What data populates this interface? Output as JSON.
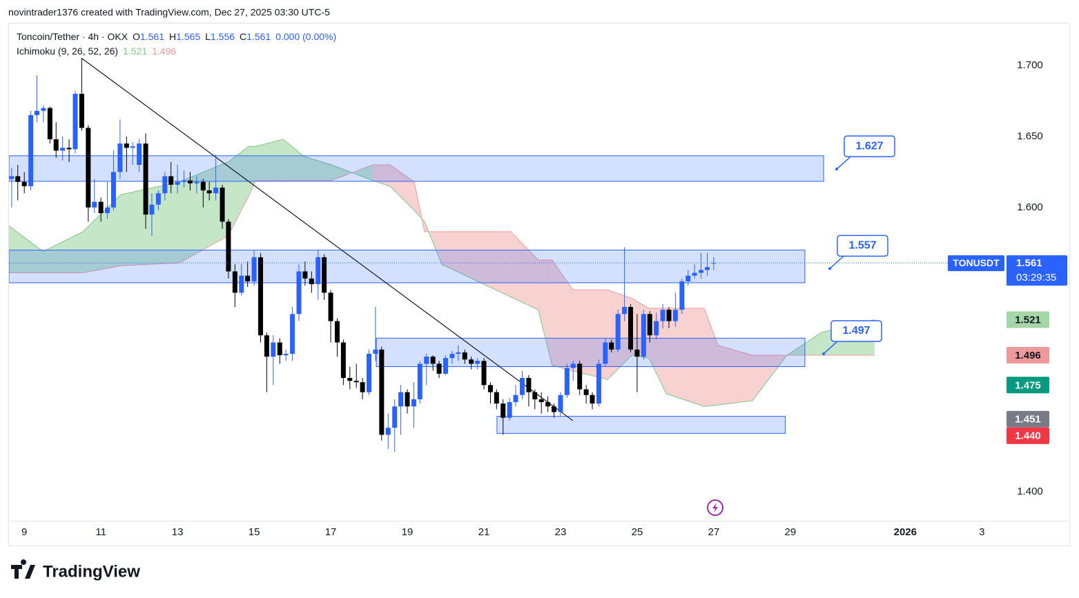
{
  "header": {
    "attribution": "novintrader1376 created with TradingView.com, Dec 27, 2025 03:30 UTC-5"
  },
  "footer": {
    "logo": "TradingView"
  },
  "chart_data": {
    "type": "candlestick",
    "legend": {
      "symbol": "Toncoin/Tether · 4h · OKX",
      "ohlc": [
        {
          "key": "O",
          "text": "1.561"
        },
        {
          "key": "H",
          "text": "1.565"
        },
        {
          "key": "L",
          "text": "1.556"
        },
        {
          "key": "C",
          "text": "1.561"
        }
      ],
      "change": "0.000 (0.00%)",
      "indicator": "Ichimoku (9, 26, 52, 26)",
      "indicator_values": [
        "1.521",
        "1.496"
      ]
    },
    "up_color": "#2962ff",
    "down_color": "#000000",
    "xlim": [
      8.6,
      34.59
    ],
    "ylim": [
      1.38,
      1.73
    ],
    "xticks": [
      9,
      11,
      13,
      15,
      17,
      19,
      21,
      23,
      25,
      27,
      29,
      {
        "value": 32,
        "label": "2026"
      },
      {
        "value": 34,
        "label": "3"
      }
    ],
    "yticks": [
      {
        "value": 1.4,
        "label": "1.400"
      },
      {
        "value": 1.6,
        "label": "1.600"
      },
      {
        "value": 1.65,
        "label": "1.650"
      },
      {
        "value": 1.7,
        "label": "1.700"
      }
    ],
    "candles": [
      [
        8.67,
        1.62,
        1.628,
        1.6,
        1.622
      ],
      [
        8.83,
        1.622,
        1.63,
        1.605,
        1.618
      ],
      [
        9.0,
        1.618,
        1.625,
        1.61,
        1.615
      ],
      [
        9.17,
        1.615,
        1.668,
        1.612,
        1.665
      ],
      [
        9.33,
        1.665,
        1.693,
        1.66,
        1.668
      ],
      [
        9.5,
        1.668,
        1.672,
        1.66,
        1.67
      ],
      [
        9.67,
        1.67,
        1.671,
        1.645,
        1.648
      ],
      [
        9.83,
        1.648,
        1.66,
        1.635,
        1.64
      ],
      [
        10.0,
        1.64,
        1.65,
        1.633,
        1.642
      ],
      [
        10.17,
        1.642,
        1.648,
        1.632,
        1.641
      ],
      [
        10.33,
        1.641,
        1.682,
        1.638,
        1.68
      ],
      [
        10.5,
        1.68,
        1.705,
        1.654,
        1.656
      ],
      [
        10.67,
        1.656,
        1.658,
        1.59,
        1.6
      ],
      [
        10.83,
        1.6,
        1.62,
        1.596,
        1.604
      ],
      [
        11.0,
        1.604,
        1.607,
        1.59,
        1.596
      ],
      [
        11.17,
        1.596,
        1.618,
        1.592,
        1.6
      ],
      [
        11.33,
        1.6,
        1.64,
        1.598,
        1.625
      ],
      [
        11.5,
        1.625,
        1.662,
        1.62,
        1.645
      ],
      [
        11.67,
        1.645,
        1.65,
        1.625,
        1.642
      ],
      [
        11.83,
        1.642,
        1.646,
        1.63,
        1.643
      ],
      [
        12.0,
        1.63,
        1.648,
        1.625,
        1.645
      ],
      [
        12.17,
        1.645,
        1.652,
        1.585,
        1.595
      ],
      [
        12.33,
        1.595,
        1.61,
        1.58,
        1.602
      ],
      [
        12.5,
        1.602,
        1.612,
        1.598,
        1.61
      ],
      [
        12.67,
        1.61,
        1.625,
        1.605,
        1.622
      ],
      [
        12.83,
        1.622,
        1.632,
        1.61,
        1.616
      ],
      [
        13.0,
        1.616,
        1.63,
        1.61,
        1.618
      ],
      [
        13.17,
        1.618,
        1.626,
        1.614,
        1.619
      ],
      [
        13.33,
        1.619,
        1.625,
        1.612,
        1.617
      ],
      [
        13.5,
        1.617,
        1.622,
        1.61,
        1.618
      ],
      [
        13.67,
        1.618,
        1.62,
        1.6,
        1.612
      ],
      [
        13.83,
        1.612,
        1.618,
        1.605,
        1.61
      ],
      [
        14.0,
        1.61,
        1.637,
        1.605,
        1.614
      ],
      [
        14.17,
        1.614,
        1.616,
        1.585,
        1.59
      ],
      [
        14.33,
        1.59,
        1.592,
        1.55,
        1.555
      ],
      [
        14.5,
        1.555,
        1.56,
        1.53,
        1.54
      ],
      [
        14.67,
        1.54,
        1.56,
        1.538,
        1.552
      ],
      [
        14.83,
        1.552,
        1.562,
        1.544,
        1.548
      ],
      [
        15.0,
        1.548,
        1.57,
        1.545,
        1.565
      ],
      [
        15.17,
        1.565,
        1.568,
        1.505,
        1.51
      ],
      [
        15.33,
        1.51,
        1.512,
        1.47,
        1.495
      ],
      [
        15.5,
        1.495,
        1.51,
        1.475,
        1.505
      ],
      [
        15.67,
        1.505,
        1.508,
        1.49,
        1.496
      ],
      [
        15.83,
        1.496,
        1.5,
        1.492,
        1.497
      ],
      [
        16.0,
        1.497,
        1.53,
        1.492,
        1.525
      ],
      [
        16.17,
        1.525,
        1.56,
        1.52,
        1.555
      ],
      [
        16.33,
        1.555,
        1.562,
        1.545,
        1.55
      ],
      [
        16.5,
        1.55,
        1.555,
        1.54,
        1.546
      ],
      [
        16.67,
        1.546,
        1.57,
        1.535,
        1.565
      ],
      [
        16.83,
        1.565,
        1.567,
        1.535,
        1.54
      ],
      [
        17.0,
        1.54,
        1.542,
        1.505,
        1.52
      ],
      [
        17.17,
        1.52,
        1.522,
        1.495,
        1.505
      ],
      [
        17.33,
        1.505,
        1.507,
        1.475,
        1.48
      ],
      [
        17.5,
        1.48,
        1.488,
        1.472,
        1.478
      ],
      [
        17.67,
        1.478,
        1.49,
        1.473,
        1.477
      ],
      [
        17.83,
        1.477,
        1.48,
        1.465,
        1.47
      ],
      [
        18.0,
        1.47,
        1.5,
        1.468,
        1.497
      ],
      [
        18.17,
        1.497,
        1.53,
        1.492,
        1.5
      ],
      [
        18.33,
        1.5,
        1.502,
        1.436,
        1.44
      ],
      [
        18.5,
        1.44,
        1.455,
        1.43,
        1.445
      ],
      [
        18.67,
        1.445,
        1.465,
        1.428,
        1.46
      ],
      [
        18.83,
        1.46,
        1.475,
        1.44,
        1.47
      ],
      [
        19.0,
        1.47,
        1.472,
        1.455,
        1.46
      ],
      [
        19.17,
        1.46,
        1.477,
        1.445,
        1.465
      ],
      [
        19.33,
        1.465,
        1.492,
        1.462,
        1.49
      ],
      [
        19.5,
        1.49,
        1.497,
        1.475,
        1.495
      ],
      [
        19.67,
        1.495,
        1.496,
        1.485,
        1.49
      ],
      [
        19.83,
        1.49,
        1.492,
        1.48,
        1.483
      ],
      [
        20.0,
        1.483,
        1.496,
        1.482,
        1.494
      ],
      [
        20.17,
        1.494,
        1.499,
        1.49,
        1.497
      ],
      [
        20.33,
        1.497,
        1.503,
        1.492,
        1.498
      ],
      [
        20.5,
        1.498,
        1.5,
        1.49,
        1.493
      ],
      [
        20.67,
        1.493,
        1.495,
        1.486,
        1.49
      ],
      [
        20.83,
        1.49,
        1.494,
        1.486,
        1.492
      ],
      [
        21.0,
        1.492,
        1.494,
        1.472,
        1.475
      ],
      [
        21.17,
        1.475,
        1.477,
        1.462,
        1.47
      ],
      [
        21.33,
        1.47,
        1.472,
        1.458,
        1.462
      ],
      [
        21.5,
        1.462,
        1.465,
        1.44,
        1.452
      ],
      [
        21.67,
        1.452,
        1.466,
        1.45,
        1.463
      ],
      [
        21.83,
        1.463,
        1.475,
        1.46,
        1.468
      ],
      [
        22.0,
        1.468,
        1.485,
        1.465,
        1.48
      ],
      [
        22.17,
        1.48,
        1.482,
        1.46,
        1.47
      ],
      [
        22.33,
        1.47,
        1.472,
        1.458,
        1.465
      ],
      [
        22.5,
        1.465,
        1.47,
        1.455,
        1.463
      ],
      [
        22.67,
        1.463,
        1.467,
        1.456,
        1.46
      ],
      [
        22.83,
        1.46,
        1.462,
        1.452,
        1.456
      ],
      [
        23.0,
        1.456,
        1.47,
        1.453,
        1.468
      ],
      [
        23.17,
        1.468,
        1.49,
        1.466,
        1.487
      ],
      [
        23.33,
        1.487,
        1.492,
        1.478,
        1.49
      ],
      [
        23.5,
        1.49,
        1.492,
        1.468,
        1.472
      ],
      [
        23.67,
        1.472,
        1.475,
        1.462,
        1.468
      ],
      [
        23.83,
        1.468,
        1.47,
        1.458,
        1.462
      ],
      [
        24.0,
        1.462,
        1.493,
        1.46,
        1.49
      ],
      [
        24.17,
        1.49,
        1.508,
        1.488,
        1.505
      ],
      [
        24.33,
        1.505,
        1.507,
        1.498,
        1.5
      ],
      [
        24.5,
        1.5,
        1.528,
        1.498,
        1.525
      ],
      [
        24.67,
        1.525,
        1.572,
        1.52,
        1.53
      ],
      [
        24.83,
        1.53,
        1.532,
        1.498,
        1.5
      ],
      [
        25.0,
        1.5,
        1.525,
        1.47,
        1.495
      ],
      [
        25.17,
        1.495,
        1.528,
        1.493,
        1.525
      ],
      [
        25.33,
        1.525,
        1.527,
        1.505,
        1.51
      ],
      [
        25.5,
        1.51,
        1.526,
        1.507,
        1.52
      ],
      [
        25.67,
        1.52,
        1.532,
        1.515,
        1.528
      ],
      [
        25.83,
        1.528,
        1.53,
        1.515,
        1.52
      ],
      [
        26.0,
        1.52,
        1.54,
        1.516,
        1.528
      ],
      [
        26.17,
        1.528,
        1.55,
        1.525,
        1.548
      ],
      [
        26.33,
        1.548,
        1.556,
        1.545,
        1.552
      ],
      [
        26.5,
        1.552,
        1.56,
        1.55,
        1.554
      ],
      [
        26.67,
        1.554,
        1.568,
        1.55,
        1.556
      ],
      [
        26.83,
        1.556,
        1.568,
        1.552,
        1.558
      ],
      [
        27.0,
        1.561,
        1.565,
        1.556,
        1.561
      ]
    ],
    "ichimoku": {
      "x": [
        8.6,
        9.49,
        10.53,
        11.52,
        13.05,
        14.32,
        14.86,
        15.04,
        15.76,
        16.3,
        17.02,
        18.1,
        18.55,
        19.18,
        19.45,
        19.9,
        21.7,
        22.42,
        22.78,
        23.32,
        24.23,
        24.86,
        25.31,
        25.76,
        26.75,
        27.11,
        28.01,
        28.91,
        29.81,
        31.2
      ],
      "span_a": [
        1.587,
        1.569,
        1.583,
        1.609,
        1.618,
        1.632,
        1.643,
        1.643,
        1.648,
        1.636,
        1.63,
        1.619,
        1.615,
        1.598,
        1.59,
        1.56,
        1.537,
        1.528,
        1.489,
        1.485,
        1.479,
        1.496,
        1.494,
        1.469,
        1.46,
        1.461,
        1.464,
        1.496,
        1.512,
        1.521
      ],
      "span_b": [
        1.554,
        1.554,
        1.554,
        1.559,
        1.561,
        1.58,
        1.608,
        1.619,
        1.619,
        1.619,
        1.619,
        1.63,
        1.63,
        1.618,
        1.583,
        1.583,
        1.583,
        1.563,
        1.563,
        1.542,
        1.542,
        1.536,
        1.529,
        1.529,
        1.529,
        1.503,
        1.496,
        1.496,
        1.496,
        1.496
      ],
      "up_color": "#81c784",
      "down_color": "#ef9a9a"
    },
    "zones": [
      {
        "x": [
          8.6,
          29.87
        ],
        "y": [
          1.6184,
          1.6364
        ]
      },
      {
        "x": [
          8.6,
          29.38
        ],
        "y": [
          1.547,
          1.57
        ]
      },
      {
        "x": [
          18.19,
          29.38
        ],
        "y": [
          1.488,
          1.508
        ]
      },
      {
        "x": [
          21.34,
          28.87
        ],
        "y": [
          1.441,
          1.453
        ]
      }
    ],
    "zone_color": "#2962ff",
    "trendline": {
      "x": [
        10.5,
        23.32
      ],
      "y": [
        1.705,
        1.45
      ]
    },
    "callouts": [
      {
        "value": 1.627,
        "label": "1.627"
      },
      {
        "value": 1.557,
        "label": "1.557"
      },
      {
        "value": 1.497,
        "label": "1.497"
      }
    ],
    "last_price": {
      "symbol": "TONUSDT",
      "value": 1.561,
      "label": "1.561",
      "countdown": "03:29:35",
      "color": "#2962ff"
    },
    "price_labels": [
      {
        "value": 1.521,
        "label": "1.521",
        "color": "#a5d6a7",
        "text_color": "#131722"
      },
      {
        "value": 1.496,
        "label": "1.496",
        "color": "#ef9a9a",
        "text_color": "#131722"
      },
      {
        "value": 1.475,
        "label": "1.475",
        "color": "#089981",
        "text_color": "#ffffff"
      },
      {
        "value": 1.451,
        "label": "1.451",
        "color": "#787b86",
        "text_color": "#ffffff"
      },
      {
        "value": 1.44,
        "label": "1.440",
        "color": "#f23645",
        "text_color": "#ffffff"
      }
    ]
  }
}
